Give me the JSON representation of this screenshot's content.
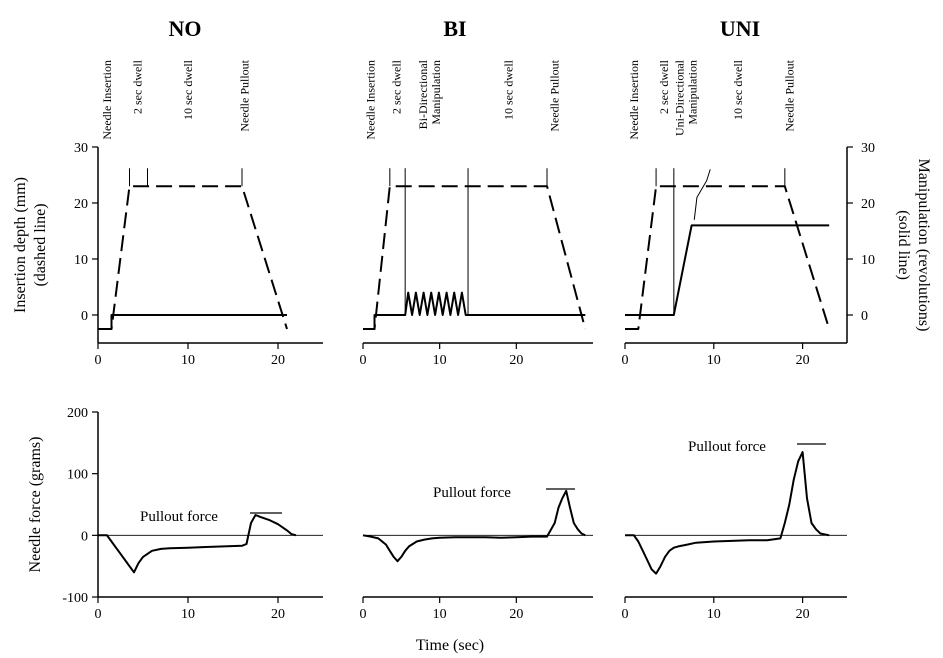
{
  "chart_data": [
    {
      "type": "line",
      "panel": "top",
      "title": "NO",
      "xlim": [
        0,
        25
      ],
      "ylim": [
        -5,
        30
      ],
      "x_ticks": [
        0,
        10,
        20
      ],
      "y_ticks": [
        0,
        10,
        20,
        30
      ],
      "ylabel": "Insertion depth (mm)\n(dashed line)",
      "series": [
        {
          "style": "dashed",
          "x": [
            0,
            1.5,
            3.5,
            16,
            21
          ],
          "y": [
            -2.5,
            -2.5,
            23,
            23,
            -2.5
          ]
        },
        {
          "style": "solid",
          "x": [
            0,
            1.5,
            1.5,
            21
          ],
          "y": [
            -2.5,
            -2.5,
            0,
            0
          ]
        }
      ],
      "events": [
        {
          "label": "Needle Insertion",
          "x": 1
        },
        {
          "label": "2 sec dwell",
          "x": 4.4
        },
        {
          "label": "10 sec dwell",
          "x": 10
        },
        {
          "label": "Needle Pullout",
          "x": 16.3
        }
      ]
    },
    {
      "type": "line",
      "panel": "top",
      "title": "BI",
      "xlim": [
        0,
        30
      ],
      "ylim": [
        -5,
        30
      ],
      "x_ticks": [
        0,
        10,
        20
      ],
      "series": [
        {
          "style": "dashed",
          "x": [
            0,
            1.5,
            3.5,
            24,
            29
          ],
          "y": [
            -2.5,
            -2.5,
            23,
            23,
            -2.5
          ]
        },
        {
          "style": "solid",
          "x": [
            0,
            1.5,
            1.5,
            5.5,
            5.9,
            6.4,
            6.9,
            7.4,
            7.9,
            8.4,
            8.9,
            9.4,
            9.9,
            10.4,
            10.9,
            11.4,
            11.9,
            12.4,
            12.9,
            13.4,
            13.7,
            29
          ],
          "y": [
            -2.5,
            -2.5,
            0,
            0,
            4,
            0,
            4,
            0,
            4,
            0,
            4,
            0,
            4,
            0,
            4,
            0,
            4,
            0,
            4,
            0,
            0,
            0
          ]
        }
      ],
      "events": [
        {
          "label": "Needle Insertion",
          "x": 1
        },
        {
          "label": "2 sec dwell",
          "x": 4.4
        },
        {
          "label": "Bi-Directional\nManipulation",
          "x": 9.5
        },
        {
          "label": "10 sec dwell",
          "x": 19
        },
        {
          "label": "Needle Pullout",
          "x": 25
        }
      ]
    },
    {
      "type": "line",
      "panel": "top",
      "title": "UNI",
      "xlim": [
        0,
        25
      ],
      "ylim": [
        -5,
        30
      ],
      "x_ticks": [
        0,
        10,
        20
      ],
      "y_ticks": [
        0,
        10,
        20,
        30
      ],
      "ylabel": "Manipulation (revolutions)\n(solid line)",
      "series": [
        {
          "style": "dashed",
          "x": [
            0,
            1.5,
            3.5,
            18,
            23
          ],
          "y": [
            -2.5,
            -2.5,
            23,
            23,
            -2.5
          ]
        },
        {
          "style": "solid",
          "x": [
            0,
            5.5,
            7.5,
            23
          ],
          "y": [
            0,
            0,
            16,
            16
          ]
        }
      ],
      "events": [
        {
          "label": "Needle Insertion",
          "x": 1
        },
        {
          "label": "2 sec dwell",
          "x": 4.4
        },
        {
          "label": "Uni-Directional\nManipulation",
          "x": 7.6
        },
        {
          "label": "10 sec dwell",
          "x": 12.7
        },
        {
          "label": "Needle Pullout",
          "x": 18.5
        }
      ]
    },
    {
      "type": "line",
      "panel": "bottom",
      "title": "",
      "xlim": [
        0,
        25
      ],
      "ylim": [
        -100,
        200
      ],
      "x_ticks": [
        0,
        10,
        20
      ],
      "y_ticks": [
        -100,
        0,
        100,
        200
      ],
      "ylabel": "Needle force (grams)",
      "annotation": "Pullout force",
      "series": [
        {
          "style": "solid",
          "x": [
            0,
            1,
            1.5,
            2,
            2.5,
            3,
            3.5,
            4,
            4.5,
            5,
            6,
            7,
            8,
            10,
            12,
            14,
            16,
            16.5,
            17,
            17.5,
            18,
            19,
            20,
            21,
            21.5,
            22
          ],
          "y": [
            0,
            0,
            -10,
            -20,
            -30,
            -40,
            -50,
            -60,
            -45,
            -35,
            -25,
            -22,
            -21,
            -20,
            -19,
            -18,
            -17,
            -14,
            20,
            33,
            30,
            25,
            18,
            8,
            2,
            0
          ]
        }
      ]
    },
    {
      "type": "line",
      "panel": "bottom",
      "title": "",
      "xlim": [
        0,
        30
      ],
      "ylim": [
        -100,
        200
      ],
      "x_ticks": [
        0,
        10,
        20
      ],
      "annotation": "Pullout force",
      "series": [
        {
          "style": "solid",
          "x": [
            0,
            1,
            2,
            3,
            3.5,
            4,
            4.5,
            5,
            5.5,
            6,
            7,
            8,
            9,
            10,
            12,
            14,
            16,
            18,
            20,
            22,
            24,
            25,
            25.5,
            26,
            26.5,
            27,
            27.5,
            28,
            28.5,
            29
          ],
          "y": [
            0,
            -2,
            -5,
            -15,
            -25,
            -35,
            -42,
            -35,
            -25,
            -18,
            -10,
            -7,
            -5,
            -4,
            -3,
            -3,
            -3,
            -4,
            -3,
            -2,
            -2,
            20,
            45,
            60,
            72,
            45,
            20,
            10,
            3,
            0
          ]
        }
      ]
    },
    {
      "type": "line",
      "panel": "bottom",
      "title": "",
      "xlim": [
        0,
        25
      ],
      "ylim": [
        -100,
        200
      ],
      "x_ticks": [
        0,
        10,
        20
      ],
      "annotation": "Pullout force",
      "series": [
        {
          "style": "solid",
          "x": [
            0,
            1,
            1.5,
            2,
            2.5,
            3,
            3.5,
            4,
            4.5,
            5,
            5.5,
            6,
            7,
            8,
            10,
            12,
            14,
            16,
            17.5,
            18,
            18.5,
            19,
            19.5,
            20,
            20.5,
            21,
            21.5,
            22,
            23
          ],
          "y": [
            0,
            0,
            -10,
            -25,
            -40,
            -55,
            -62,
            -50,
            -35,
            -25,
            -20,
            -18,
            -15,
            -12,
            -10,
            -9,
            -8,
            -8,
            -5,
            20,
            50,
            90,
            120,
            135,
            60,
            20,
            10,
            3,
            0
          ]
        }
      ]
    }
  ],
  "figure": {
    "xlabel": "Time (sec)"
  }
}
